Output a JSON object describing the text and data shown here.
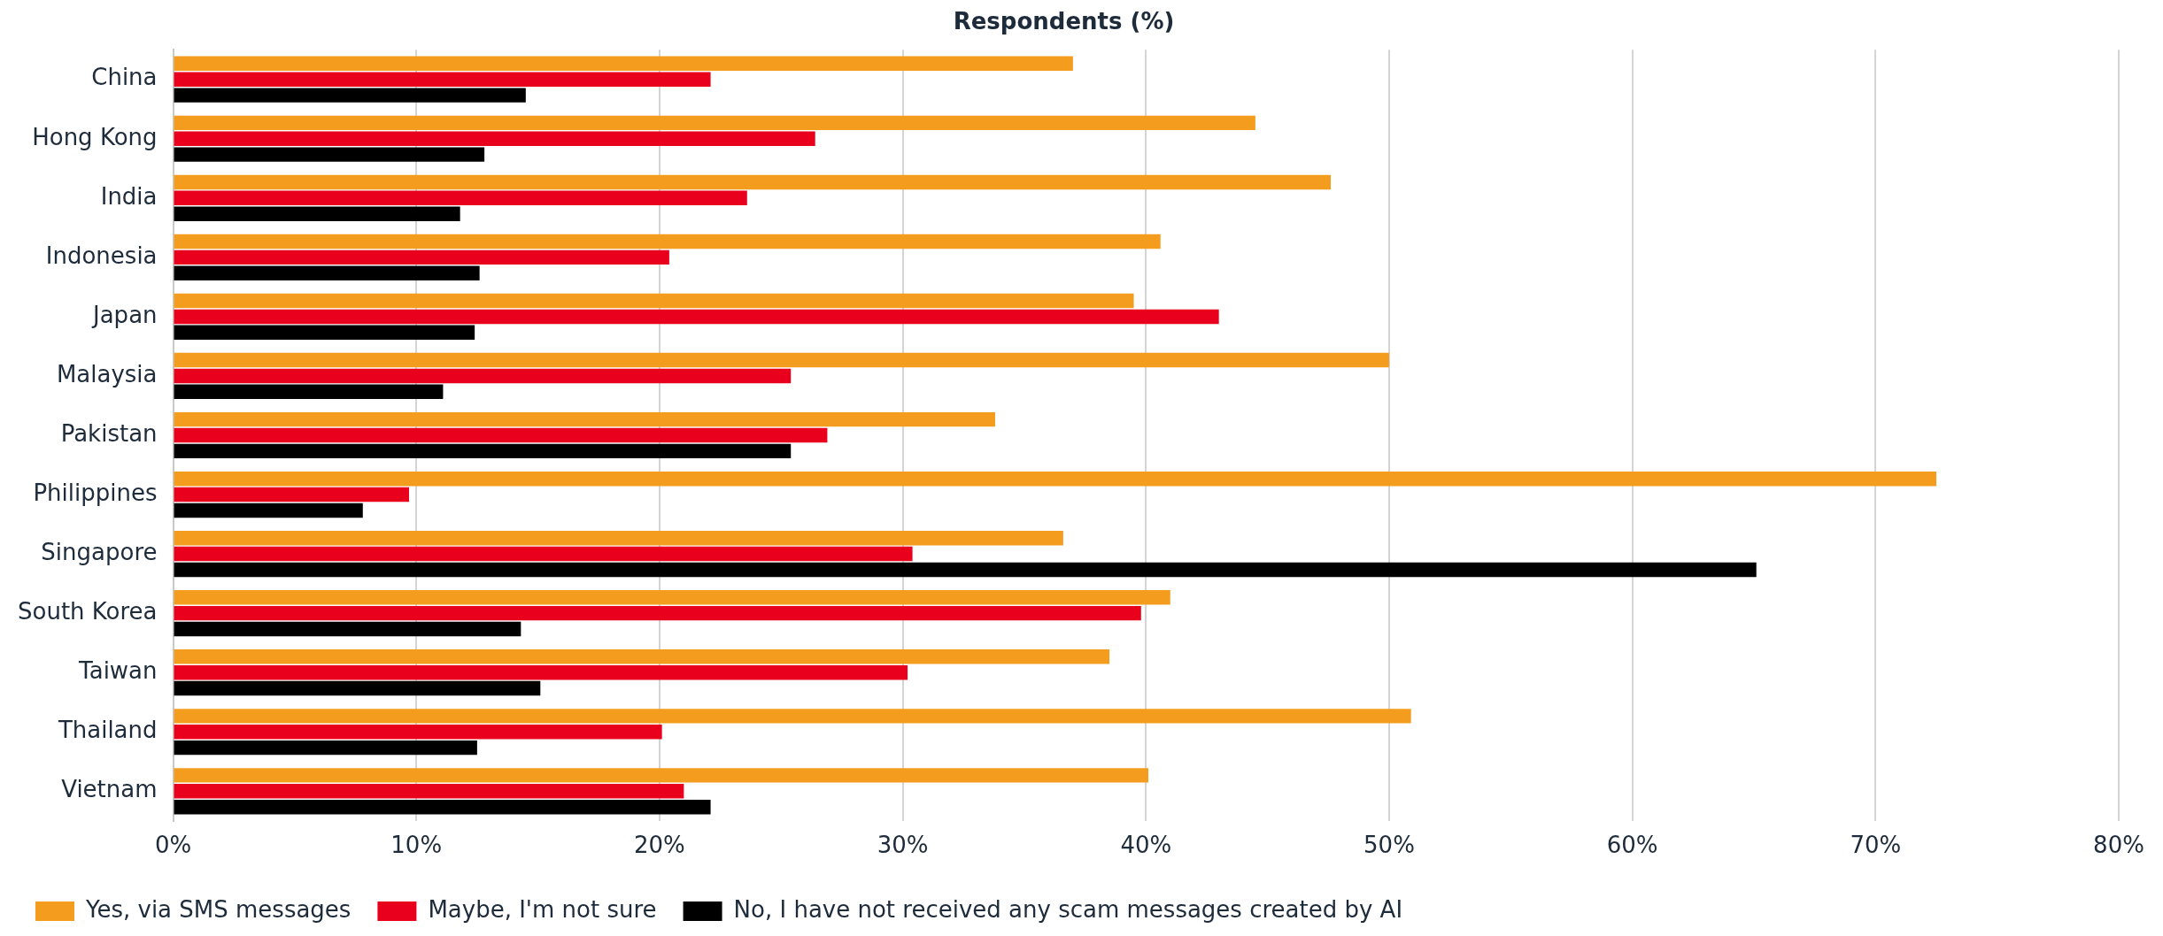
{
  "chart_data": {
    "type": "bar",
    "orientation": "horizontal",
    "title": "Respondents (%)",
    "categories": [
      "China",
      "Hong Kong",
      "India",
      "Indonesia",
      "Japan",
      "Malaysia",
      "Pakistan",
      "Philippines",
      "Singapore",
      "South Korea",
      "Taiwan",
      "Thailand",
      "Vietnam"
    ],
    "series": [
      {
        "name": "Yes, via SMS messages",
        "color": "#f39c1e",
        "values": [
          37.0,
          44.5,
          47.6,
          40.6,
          39.5,
          50.0,
          33.8,
          72.5,
          36.6,
          41.0,
          38.5,
          50.9,
          40.1
        ]
      },
      {
        "name": "Maybe, I'm not sure",
        "color": "#e8001c",
        "values": [
          22.1,
          26.4,
          23.6,
          20.4,
          43.0,
          25.4,
          26.9,
          9.7,
          30.4,
          39.8,
          30.2,
          20.1,
          21.0
        ]
      },
      {
        "name": "No, I have not received any scam messages created by AI",
        "color": "#000000",
        "values": [
          14.5,
          12.8,
          11.8,
          12.6,
          12.4,
          11.1,
          25.4,
          7.8,
          65.1,
          14.3,
          15.1,
          12.5,
          22.1
        ]
      }
    ],
    "xlim": [
      0,
      80
    ],
    "xticks": [
      {
        "value": 0,
        "label": "0%"
      },
      {
        "value": 10,
        "label": "10%"
      },
      {
        "value": 20,
        "label": "20%"
      },
      {
        "value": 30,
        "label": "30%"
      },
      {
        "value": 40,
        "label": "40%"
      },
      {
        "value": 50,
        "label": "50%"
      },
      {
        "value": 60,
        "label": "60%"
      },
      {
        "value": 70,
        "label": "70%"
      },
      {
        "value": 80,
        "label": "80%"
      }
    ],
    "grid": "x",
    "legend": "bottom"
  }
}
